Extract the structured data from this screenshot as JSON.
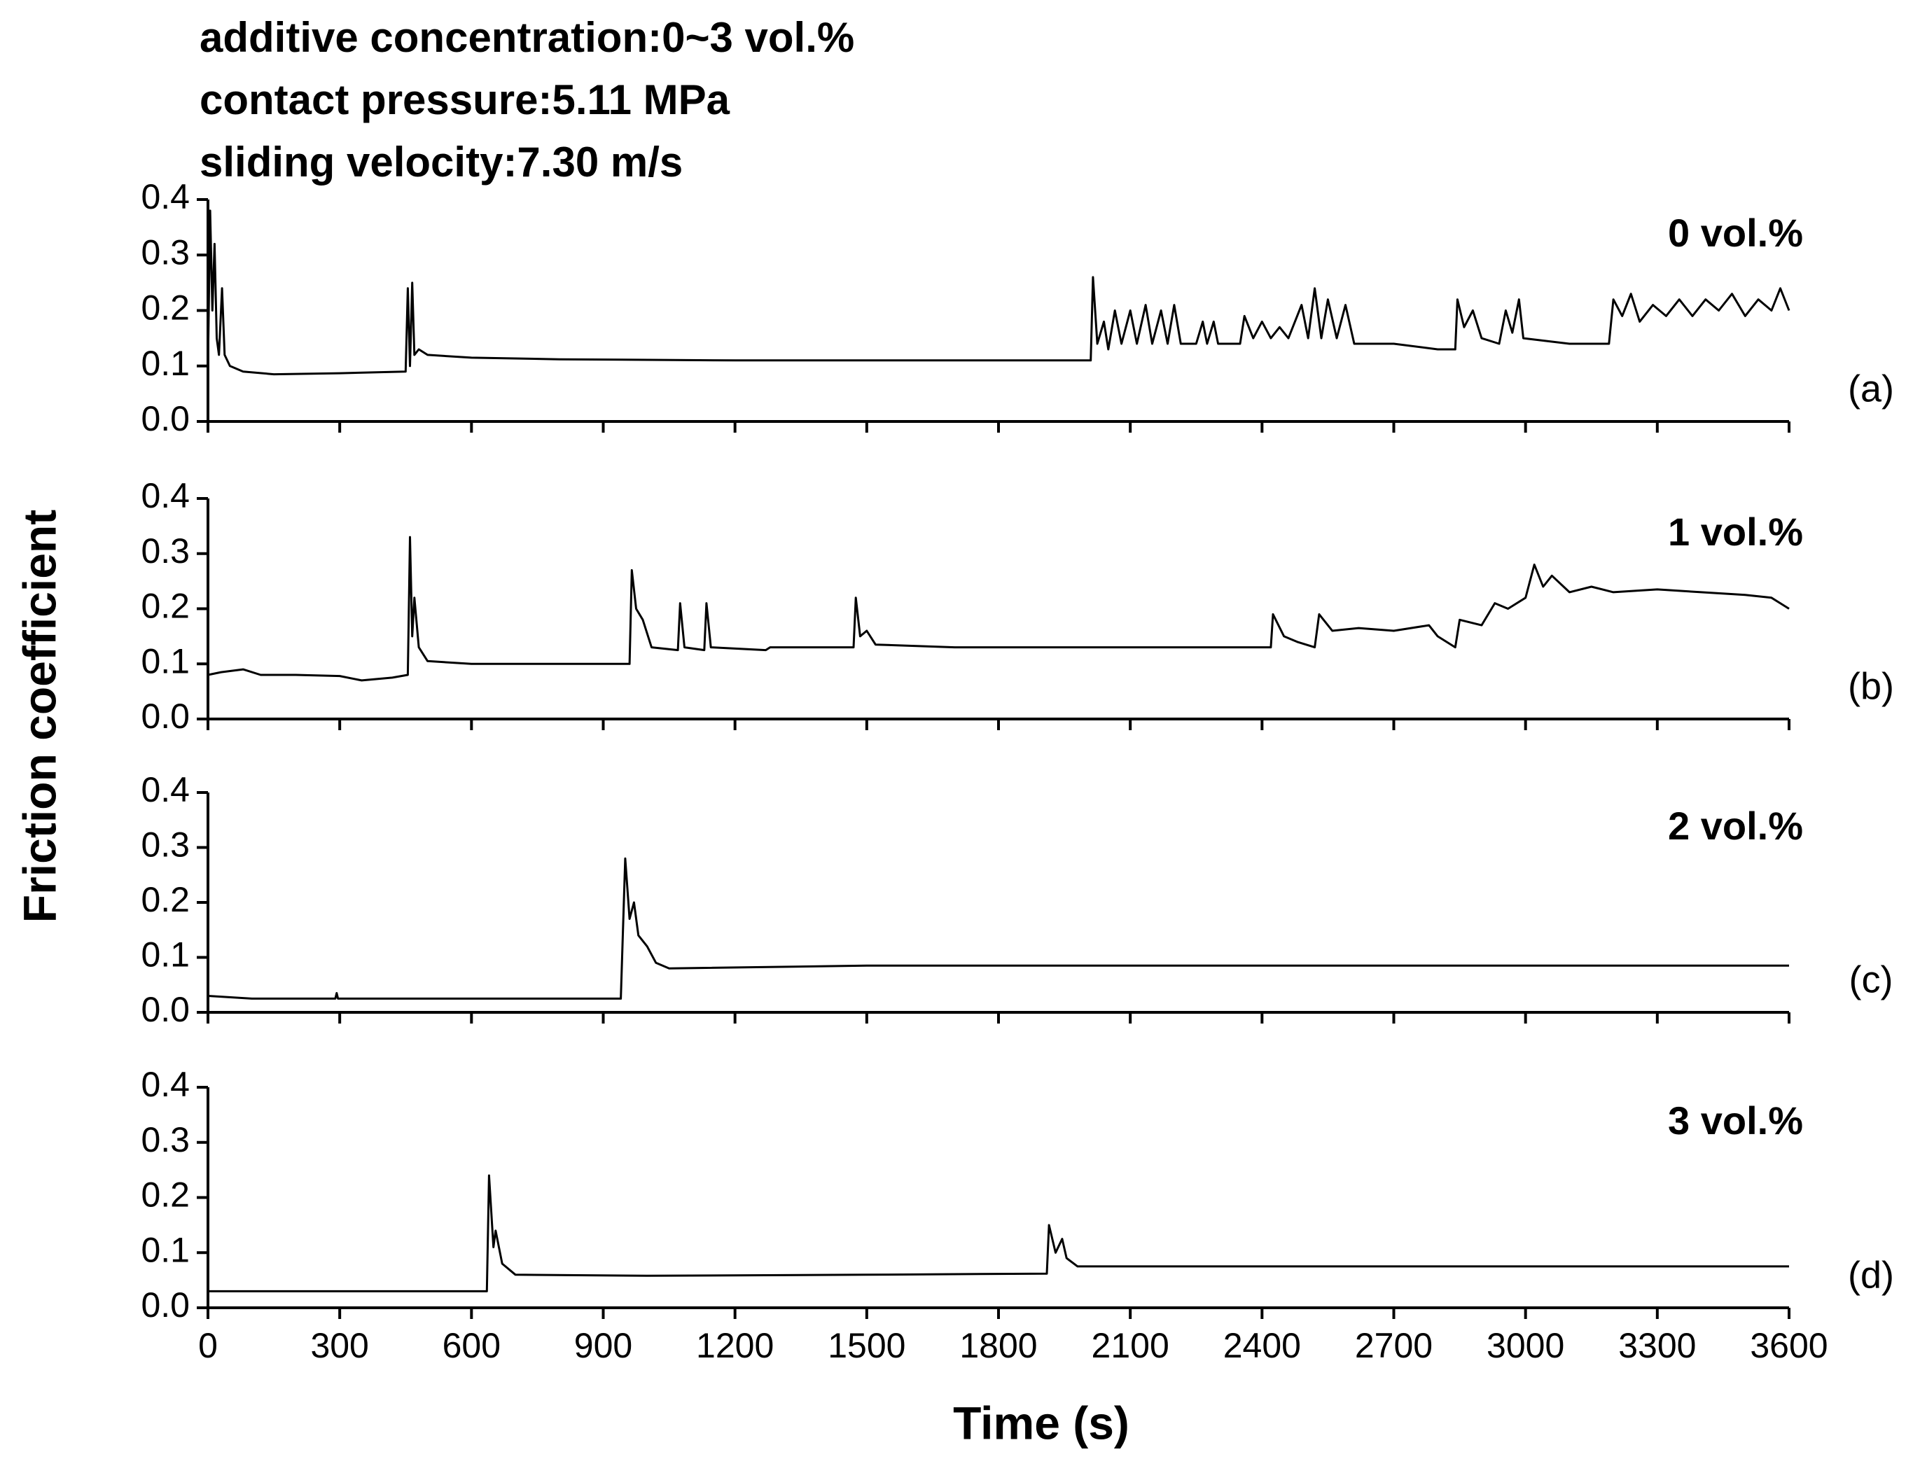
{
  "header": {
    "lines": [
      "additive concentration:0~3 vol.%",
      "contact pressure:5.11 MPa",
      "sliding velocity:7.30 m/s"
    ]
  },
  "ylabel": "Friction coefficient",
  "xlabel": "Time (s)",
  "chart_data": [
    {
      "type": "line",
      "label": "(a)",
      "ylim": [
        0,
        0.4
      ],
      "yticks": [
        {
          "value": 0,
          "label": "0.0"
        },
        0.1,
        0.2,
        0.3,
        0.4
      ],
      "xlim": [
        0,
        3600
      ],
      "xticks": [
        0,
        300,
        600,
        900,
        1200,
        1500,
        1800,
        2100,
        2400,
        2700,
        3000,
        3300,
        3600
      ],
      "show_xtick_labels": false,
      "x": [
        0,
        5,
        10,
        15,
        20,
        25,
        32,
        38,
        50,
        80,
        150,
        300,
        450,
        455,
        460,
        465,
        470,
        480,
        500,
        600,
        800,
        1200,
        1600,
        2010,
        2015,
        2025,
        2040,
        2050,
        2065,
        2080,
        2100,
        2115,
        2135,
        2150,
        2170,
        2185,
        2200,
        2215,
        2250,
        2265,
        2275,
        2290,
        2300,
        2350,
        2360,
        2380,
        2400,
        2420,
        2440,
        2460,
        2490,
        2505,
        2520,
        2535,
        2550,
        2570,
        2590,
        2610,
        2700,
        2800,
        2840,
        2845,
        2860,
        2880,
        2900,
        2940,
        2955,
        2970,
        2985,
        2995,
        3100,
        3190,
        3200,
        3220,
        3240,
        3260,
        3290,
        3320,
        3350,
        3380,
        3410,
        3440,
        3470,
        3500,
        3530,
        3560,
        3580,
        3600
      ],
      "series": [
        {
          "name": "0 vol.%",
          "color": "#000000",
          "values": [
            0.1,
            0.38,
            0.2,
            0.32,
            0.15,
            0.12,
            0.24,
            0.12,
            0.1,
            0.09,
            0.085,
            0.087,
            0.09,
            0.24,
            0.1,
            0.25,
            0.12,
            0.13,
            0.12,
            0.115,
            0.112,
            0.11,
            0.11,
            0.11,
            0.26,
            0.14,
            0.18,
            0.13,
            0.2,
            0.14,
            0.2,
            0.14,
            0.21,
            0.14,
            0.2,
            0.14,
            0.21,
            0.14,
            0.14,
            0.18,
            0.14,
            0.18,
            0.14,
            0.14,
            0.19,
            0.15,
            0.18,
            0.15,
            0.17,
            0.15,
            0.21,
            0.15,
            0.24,
            0.15,
            0.22,
            0.15,
            0.21,
            0.14,
            0.14,
            0.13,
            0.13,
            0.22,
            0.17,
            0.2,
            0.15,
            0.14,
            0.2,
            0.16,
            0.22,
            0.15,
            0.14,
            0.14,
            0.22,
            0.19,
            0.23,
            0.18,
            0.21,
            0.19,
            0.22,
            0.19,
            0.22,
            0.2,
            0.23,
            0.19,
            0.22,
            0.2,
            0.24,
            0.2
          ]
        }
      ]
    },
    {
      "type": "line",
      "label": "(b)",
      "ylim": [
        0,
        0.4
      ],
      "yticks": [
        {
          "value": 0,
          "label": "0.0"
        },
        0.1,
        0.2,
        0.3,
        0.4
      ],
      "xlim": [
        0,
        3600
      ],
      "xticks": [
        0,
        300,
        600,
        900,
        1200,
        1500,
        1800,
        2100,
        2400,
        2700,
        3000,
        3300,
        3600
      ],
      "show_xtick_labels": false,
      "x": [
        0,
        30,
        80,
        120,
        200,
        300,
        350,
        420,
        455,
        460,
        465,
        470,
        480,
        500,
        600,
        800,
        960,
        965,
        975,
        990,
        1010,
        1070,
        1075,
        1085,
        1130,
        1135,
        1145,
        1270,
        1280,
        1470,
        1475,
        1485,
        1500,
        1520,
        1700,
        2000,
        2420,
        2425,
        2450,
        2480,
        2520,
        2530,
        2560,
        2620,
        2700,
        2780,
        2800,
        2840,
        2850,
        2900,
        2930,
        2960,
        3000,
        3020,
        3040,
        3060,
        3100,
        3150,
        3200,
        3300,
        3400,
        3500,
        3560,
        3600
      ],
      "series": [
        {
          "name": "1 vol.%",
          "color": "#000000",
          "values": [
            0.08,
            0.085,
            0.09,
            0.08,
            0.08,
            0.078,
            0.07,
            0.075,
            0.08,
            0.33,
            0.15,
            0.22,
            0.13,
            0.105,
            0.1,
            0.1,
            0.1,
            0.27,
            0.2,
            0.18,
            0.13,
            0.125,
            0.21,
            0.13,
            0.125,
            0.21,
            0.13,
            0.125,
            0.13,
            0.13,
            0.22,
            0.15,
            0.16,
            0.135,
            0.13,
            0.13,
            0.13,
            0.19,
            0.15,
            0.14,
            0.13,
            0.19,
            0.16,
            0.165,
            0.16,
            0.17,
            0.15,
            0.13,
            0.18,
            0.17,
            0.21,
            0.2,
            0.22,
            0.28,
            0.24,
            0.26,
            0.23,
            0.24,
            0.23,
            0.235,
            0.23,
            0.225,
            0.22,
            0.2
          ]
        }
      ]
    },
    {
      "type": "line",
      "label": "(c)",
      "ylim": [
        0,
        0.4
      ],
      "yticks": [
        {
          "value": 0,
          "label": "0.0"
        },
        0.1,
        0.2,
        0.3,
        0.4
      ],
      "xlim": [
        0,
        3600
      ],
      "xticks": [
        0,
        300,
        600,
        900,
        1200,
        1500,
        1800,
        2100,
        2400,
        2700,
        3000,
        3300,
        3600
      ],
      "show_xtick_labels": false,
      "x": [
        0,
        100,
        290,
        293,
        296,
        600,
        940,
        950,
        960,
        970,
        980,
        1000,
        1020,
        1050,
        1500,
        2000,
        3000,
        3600
      ],
      "series": [
        {
          "name": "2 vol.%",
          "color": "#000000",
          "values": [
            0.03,
            0.025,
            0.025,
            0.035,
            0.025,
            0.025,
            0.025,
            0.28,
            0.17,
            0.2,
            0.14,
            0.12,
            0.09,
            0.08,
            0.085,
            0.085,
            0.085,
            0.085
          ]
        }
      ]
    },
    {
      "type": "line",
      "label": "(d)",
      "ylim": [
        0,
        0.4
      ],
      "yticks": [
        {
          "value": 0,
          "label": "0.0"
        },
        0.1,
        0.2,
        0.3,
        0.4
      ],
      "xlim": [
        0,
        3600
      ],
      "xticks": [
        0,
        300,
        600,
        900,
        1200,
        1500,
        1800,
        2100,
        2400,
        2700,
        3000,
        3300,
        3600
      ],
      "show_xtick_labels": true,
      "x": [
        0,
        300,
        635,
        640,
        650,
        655,
        670,
        700,
        1000,
        1500,
        1910,
        1915,
        1930,
        1945,
        1955,
        1980,
        2500,
        3600
      ],
      "series": [
        {
          "name": "3 vol.%",
          "color": "#000000",
          "values": [
            0.03,
            0.03,
            0.03,
            0.24,
            0.11,
            0.14,
            0.08,
            0.06,
            0.058,
            0.06,
            0.062,
            0.15,
            0.1,
            0.125,
            0.09,
            0.075,
            0.075,
            0.075
          ]
        }
      ]
    }
  ]
}
